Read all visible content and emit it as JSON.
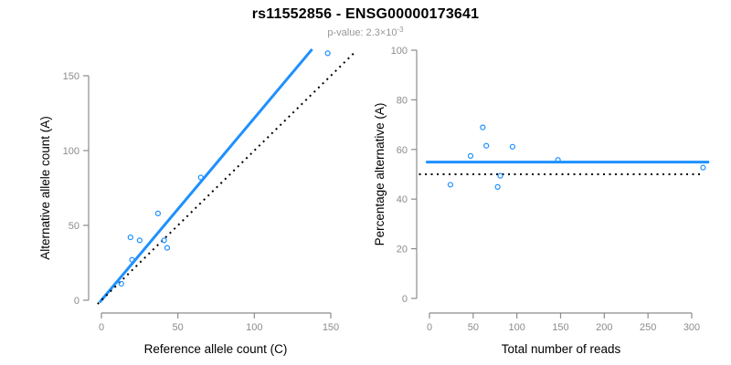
{
  "header": {
    "title": "rs11552856 - ENSG00000173641",
    "subtitle_main": "p-value: 2.3×10",
    "subtitle_exp": "-3"
  },
  "colors": {
    "accent_blue": "#1E90FF",
    "axis_gray": "#8C8C8C",
    "tick_label_gray": "#8C8C8C",
    "axis_title_black": "#000000",
    "dotted_line_black": "#000000",
    "point_blue": "#1E90FF"
  },
  "chart_data": [
    {
      "type": "scatter",
      "name": "allele-counts",
      "title": "rs11552856 - ENSG00000173641",
      "subtitle": "p-value: 2.3×10^-3",
      "xlabel": "Reference allele count (C)",
      "ylabel": "Alternative allele count (A)",
      "xlim": [
        0,
        150
      ],
      "ylim": [
        0,
        150
      ],
      "x_ticks": [
        0,
        50,
        100,
        150
      ],
      "y_ticks": [
        0,
        50,
        100,
        150
      ],
      "grid": false,
      "legend": null,
      "points": [
        [
          13,
          11
        ],
        [
          19,
          42
        ],
        [
          20,
          27
        ],
        [
          25,
          40
        ],
        [
          37,
          58
        ],
        [
          41,
          40
        ],
        [
          43,
          35
        ],
        [
          65,
          82
        ],
        [
          148,
          165
        ]
      ],
      "lines": [
        {
          "name": "fit-line",
          "style": "solid",
          "color": "#1E90FF",
          "slope": 1.217,
          "intercept": 0
        },
        {
          "name": "identity-line",
          "style": "dotted",
          "color": "#000000",
          "slope": 1,
          "intercept": 0
        }
      ]
    },
    {
      "type": "scatter",
      "name": "percentage-vs-coverage",
      "xlabel": "Total number of reads",
      "ylabel": "Percentage alternative (A)",
      "xlim": [
        0,
        300
      ],
      "ylim": [
        0,
        100
      ],
      "x_ticks": [
        0,
        50,
        100,
        150,
        200,
        250,
        300
      ],
      "y_ticks": [
        0,
        20,
        40,
        60,
        80,
        100
      ],
      "grid": false,
      "legend": null,
      "points": [
        [
          24,
          45.8
        ],
        [
          47,
          57.4
        ],
        [
          61,
          68.9
        ],
        [
          65,
          61.5
        ],
        [
          78,
          44.9
        ],
        [
          81,
          49.4
        ],
        [
          95,
          61.1
        ],
        [
          147,
          55.8
        ],
        [
          313,
          52.7
        ]
      ],
      "lines": [
        {
          "name": "mean-percentage-line",
          "style": "solid",
          "color": "#1E90FF",
          "h": 54.9
        },
        {
          "name": "expected-50-line",
          "style": "dotted",
          "color": "#000000",
          "h": 50
        }
      ]
    }
  ]
}
